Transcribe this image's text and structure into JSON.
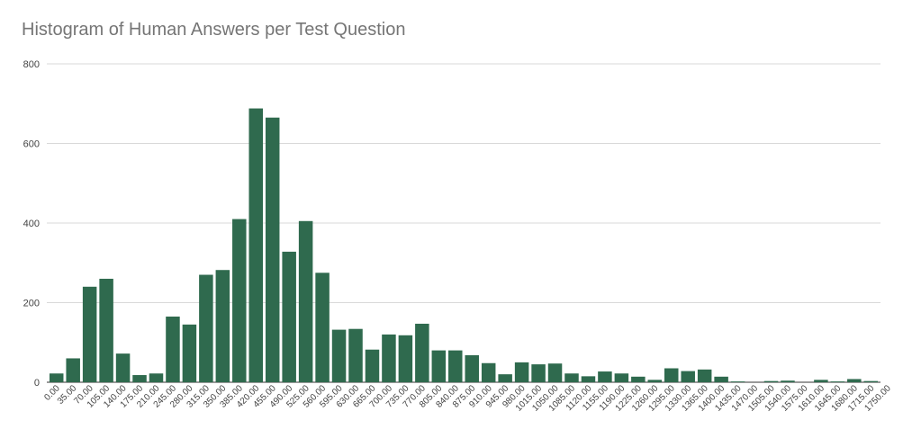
{
  "chart_data": {
    "type": "bar",
    "title": "Histogram of Human Answers per Test Question",
    "xlabel": "",
    "ylabel": "",
    "ylim": [
      0,
      800
    ],
    "yticks": [
      "0",
      "200",
      "400",
      "600",
      "800"
    ],
    "grid": true,
    "legend": "none",
    "bar_color": "#2f6a4e",
    "categories": [
      "0.00",
      "35.00",
      "70.00",
      "105.00",
      "140.00",
      "175.00",
      "210.00",
      "245.00",
      "280.00",
      "315.00",
      "350.00",
      "385.00",
      "420.00",
      "455.00",
      "490.00",
      "525.00",
      "560.00",
      "595.00",
      "630.00",
      "665.00",
      "700.00",
      "735.00",
      "770.00",
      "805.00",
      "840.00",
      "875.00",
      "910.00",
      "945.00",
      "980.00",
      "1015.00",
      "1050.00",
      "1085.00",
      "1120.00",
      "1155.00",
      "1190.00",
      "1225.00",
      "1260.00",
      "1295.00",
      "1330.00",
      "1365.00",
      "1400.00",
      "1435.00",
      "1470.00",
      "1505.00",
      "1540.00",
      "1575.00",
      "1610.00",
      "1645.00",
      "1680.00",
      "1715.00",
      "1750.00"
    ],
    "values": [
      22,
      60,
      240,
      260,
      72,
      18,
      22,
      165,
      145,
      270,
      282,
      410,
      688,
      665,
      328,
      405,
      275,
      132,
      134,
      82,
      120,
      118,
      147,
      80,
      80,
      68,
      48,
      20,
      50,
      45,
      47,
      22,
      15,
      27,
      22,
      14,
      6,
      35,
      28,
      32,
      14,
      2,
      0,
      3,
      4,
      0,
      6,
      2,
      8,
      3,
      0
    ]
  }
}
